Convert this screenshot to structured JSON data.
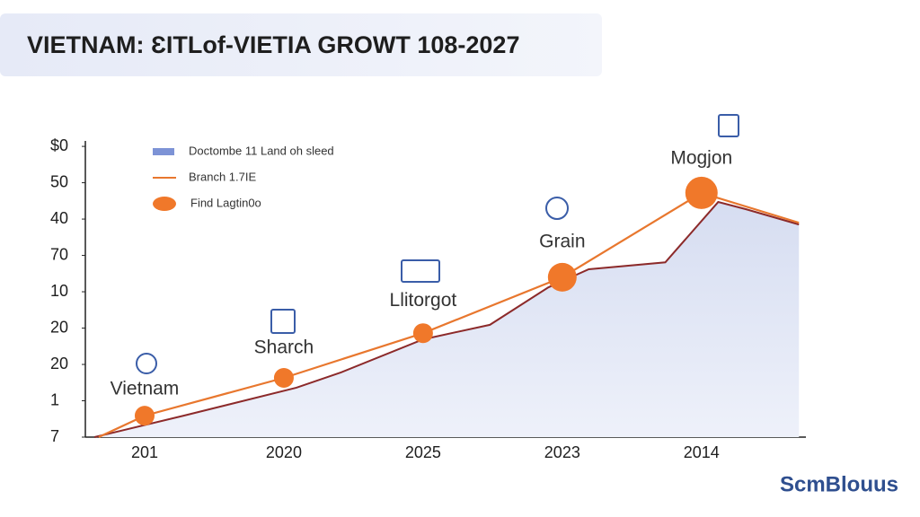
{
  "chart_data": {
    "type": "line",
    "title": "VIETNAM: ƐITLof-VIETIA GROWT 108-2027",
    "watermark": "ScmBlouus",
    "categories": [
      "201",
      "2020",
      "2025",
      "2023",
      "2014"
    ],
    "xlim": [
      -0.4,
      4.75
    ],
    "ylim": [
      0,
      8.2
    ],
    "yticks": [
      {
        "value": 0,
        "label": "7"
      },
      {
        "value": 1,
        "label": "1"
      },
      {
        "value": 2,
        "label": "20"
      },
      {
        "value": 3,
        "label": "20"
      },
      {
        "value": 4,
        "label": "10"
      },
      {
        "value": 5,
        "label": "70"
      },
      {
        "value": 6,
        "label": "40"
      },
      {
        "value": 7,
        "label": "50"
      },
      {
        "value": 8,
        "label": "$0"
      }
    ],
    "series": [
      {
        "name": "Doctombe 11 Land oh sleed",
        "kind": "area",
        "color": "#8c2a2a",
        "fill": "#dfe4f3",
        "x": [
          -0.36,
          0.28,
          1.09,
          1.41,
          2.0,
          2.48,
          2.9,
          3.19,
          3.74,
          4.12,
          4.32,
          4.7
        ],
        "values": [
          0,
          0.59,
          1.36,
          1.78,
          2.69,
          3.09,
          4.12,
          4.62,
          4.81,
          6.47,
          6.27,
          5.85
        ]
      },
      {
        "name": "Branch 1.7IE",
        "kind": "line",
        "color": "#e8772e",
        "x": [
          -0.33,
          0,
          1,
          2,
          3,
          4,
          4.7
        ],
        "values": [
          0,
          0.59,
          1.63,
          2.86,
          4.4,
          6.72,
          5.9
        ]
      },
      {
        "name": "Find Lagtin0o",
        "kind": "marker",
        "color": "#f0782a",
        "x": [
          0,
          1,
          2,
          3,
          4
        ],
        "values": [
          0.59,
          1.63,
          2.86,
          4.4,
          6.72
        ]
      }
    ],
    "annotations": [
      "Vietnam",
      "Sharch",
      "Llitorgot",
      "Grain",
      "Mogjon"
    ]
  }
}
